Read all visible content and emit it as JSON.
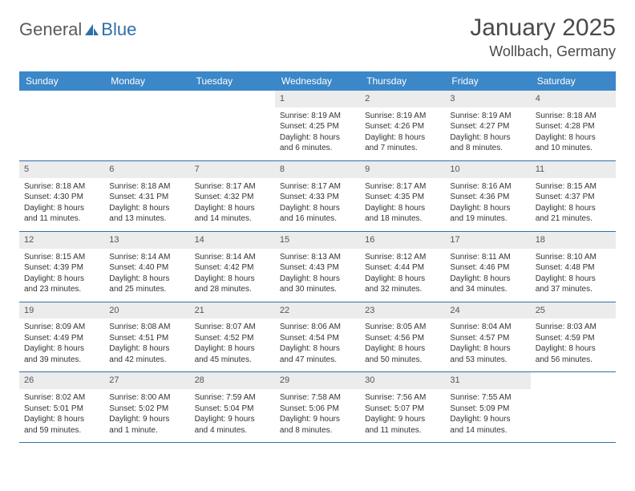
{
  "brand": {
    "part1": "General",
    "part2": "Blue"
  },
  "title": "January 2025",
  "location": "Wollbach, Germany",
  "colors": {
    "header_bg": "#3b87c8",
    "header_fg": "#ffffff",
    "row_border": "#2f6fa8",
    "daynum_bg": "#ececec",
    "text": "#333333",
    "brand_gray": "#5a5a5a",
    "brand_blue": "#2f6fa8"
  },
  "weekdays": [
    "Sunday",
    "Monday",
    "Tuesday",
    "Wednesday",
    "Thursday",
    "Friday",
    "Saturday"
  ],
  "weeks": [
    [
      {
        "n": "",
        "sr": "",
        "ss": "",
        "dl": ""
      },
      {
        "n": "",
        "sr": "",
        "ss": "",
        "dl": ""
      },
      {
        "n": "",
        "sr": "",
        "ss": "",
        "dl": ""
      },
      {
        "n": "1",
        "sr": "Sunrise: 8:19 AM",
        "ss": "Sunset: 4:25 PM",
        "dl": "Daylight: 8 hours and 6 minutes."
      },
      {
        "n": "2",
        "sr": "Sunrise: 8:19 AM",
        "ss": "Sunset: 4:26 PM",
        "dl": "Daylight: 8 hours and 7 minutes."
      },
      {
        "n": "3",
        "sr": "Sunrise: 8:19 AM",
        "ss": "Sunset: 4:27 PM",
        "dl": "Daylight: 8 hours and 8 minutes."
      },
      {
        "n": "4",
        "sr": "Sunrise: 8:18 AM",
        "ss": "Sunset: 4:28 PM",
        "dl": "Daylight: 8 hours and 10 minutes."
      }
    ],
    [
      {
        "n": "5",
        "sr": "Sunrise: 8:18 AM",
        "ss": "Sunset: 4:30 PM",
        "dl": "Daylight: 8 hours and 11 minutes."
      },
      {
        "n": "6",
        "sr": "Sunrise: 8:18 AM",
        "ss": "Sunset: 4:31 PM",
        "dl": "Daylight: 8 hours and 13 minutes."
      },
      {
        "n": "7",
        "sr": "Sunrise: 8:17 AM",
        "ss": "Sunset: 4:32 PM",
        "dl": "Daylight: 8 hours and 14 minutes."
      },
      {
        "n": "8",
        "sr": "Sunrise: 8:17 AM",
        "ss": "Sunset: 4:33 PM",
        "dl": "Daylight: 8 hours and 16 minutes."
      },
      {
        "n": "9",
        "sr": "Sunrise: 8:17 AM",
        "ss": "Sunset: 4:35 PM",
        "dl": "Daylight: 8 hours and 18 minutes."
      },
      {
        "n": "10",
        "sr": "Sunrise: 8:16 AM",
        "ss": "Sunset: 4:36 PM",
        "dl": "Daylight: 8 hours and 19 minutes."
      },
      {
        "n": "11",
        "sr": "Sunrise: 8:15 AM",
        "ss": "Sunset: 4:37 PM",
        "dl": "Daylight: 8 hours and 21 minutes."
      }
    ],
    [
      {
        "n": "12",
        "sr": "Sunrise: 8:15 AM",
        "ss": "Sunset: 4:39 PM",
        "dl": "Daylight: 8 hours and 23 minutes."
      },
      {
        "n": "13",
        "sr": "Sunrise: 8:14 AM",
        "ss": "Sunset: 4:40 PM",
        "dl": "Daylight: 8 hours and 25 minutes."
      },
      {
        "n": "14",
        "sr": "Sunrise: 8:14 AM",
        "ss": "Sunset: 4:42 PM",
        "dl": "Daylight: 8 hours and 28 minutes."
      },
      {
        "n": "15",
        "sr": "Sunrise: 8:13 AM",
        "ss": "Sunset: 4:43 PM",
        "dl": "Daylight: 8 hours and 30 minutes."
      },
      {
        "n": "16",
        "sr": "Sunrise: 8:12 AM",
        "ss": "Sunset: 4:44 PM",
        "dl": "Daylight: 8 hours and 32 minutes."
      },
      {
        "n": "17",
        "sr": "Sunrise: 8:11 AM",
        "ss": "Sunset: 4:46 PM",
        "dl": "Daylight: 8 hours and 34 minutes."
      },
      {
        "n": "18",
        "sr": "Sunrise: 8:10 AM",
        "ss": "Sunset: 4:48 PM",
        "dl": "Daylight: 8 hours and 37 minutes."
      }
    ],
    [
      {
        "n": "19",
        "sr": "Sunrise: 8:09 AM",
        "ss": "Sunset: 4:49 PM",
        "dl": "Daylight: 8 hours and 39 minutes."
      },
      {
        "n": "20",
        "sr": "Sunrise: 8:08 AM",
        "ss": "Sunset: 4:51 PM",
        "dl": "Daylight: 8 hours and 42 minutes."
      },
      {
        "n": "21",
        "sr": "Sunrise: 8:07 AM",
        "ss": "Sunset: 4:52 PM",
        "dl": "Daylight: 8 hours and 45 minutes."
      },
      {
        "n": "22",
        "sr": "Sunrise: 8:06 AM",
        "ss": "Sunset: 4:54 PM",
        "dl": "Daylight: 8 hours and 47 minutes."
      },
      {
        "n": "23",
        "sr": "Sunrise: 8:05 AM",
        "ss": "Sunset: 4:56 PM",
        "dl": "Daylight: 8 hours and 50 minutes."
      },
      {
        "n": "24",
        "sr": "Sunrise: 8:04 AM",
        "ss": "Sunset: 4:57 PM",
        "dl": "Daylight: 8 hours and 53 minutes."
      },
      {
        "n": "25",
        "sr": "Sunrise: 8:03 AM",
        "ss": "Sunset: 4:59 PM",
        "dl": "Daylight: 8 hours and 56 minutes."
      }
    ],
    [
      {
        "n": "26",
        "sr": "Sunrise: 8:02 AM",
        "ss": "Sunset: 5:01 PM",
        "dl": "Daylight: 8 hours and 59 minutes."
      },
      {
        "n": "27",
        "sr": "Sunrise: 8:00 AM",
        "ss": "Sunset: 5:02 PM",
        "dl": "Daylight: 9 hours and 1 minute."
      },
      {
        "n": "28",
        "sr": "Sunrise: 7:59 AM",
        "ss": "Sunset: 5:04 PM",
        "dl": "Daylight: 9 hours and 4 minutes."
      },
      {
        "n": "29",
        "sr": "Sunrise: 7:58 AM",
        "ss": "Sunset: 5:06 PM",
        "dl": "Daylight: 9 hours and 8 minutes."
      },
      {
        "n": "30",
        "sr": "Sunrise: 7:56 AM",
        "ss": "Sunset: 5:07 PM",
        "dl": "Daylight: 9 hours and 11 minutes."
      },
      {
        "n": "31",
        "sr": "Sunrise: 7:55 AM",
        "ss": "Sunset: 5:09 PM",
        "dl": "Daylight: 9 hours and 14 minutes."
      },
      {
        "n": "",
        "sr": "",
        "ss": "",
        "dl": ""
      }
    ]
  ]
}
